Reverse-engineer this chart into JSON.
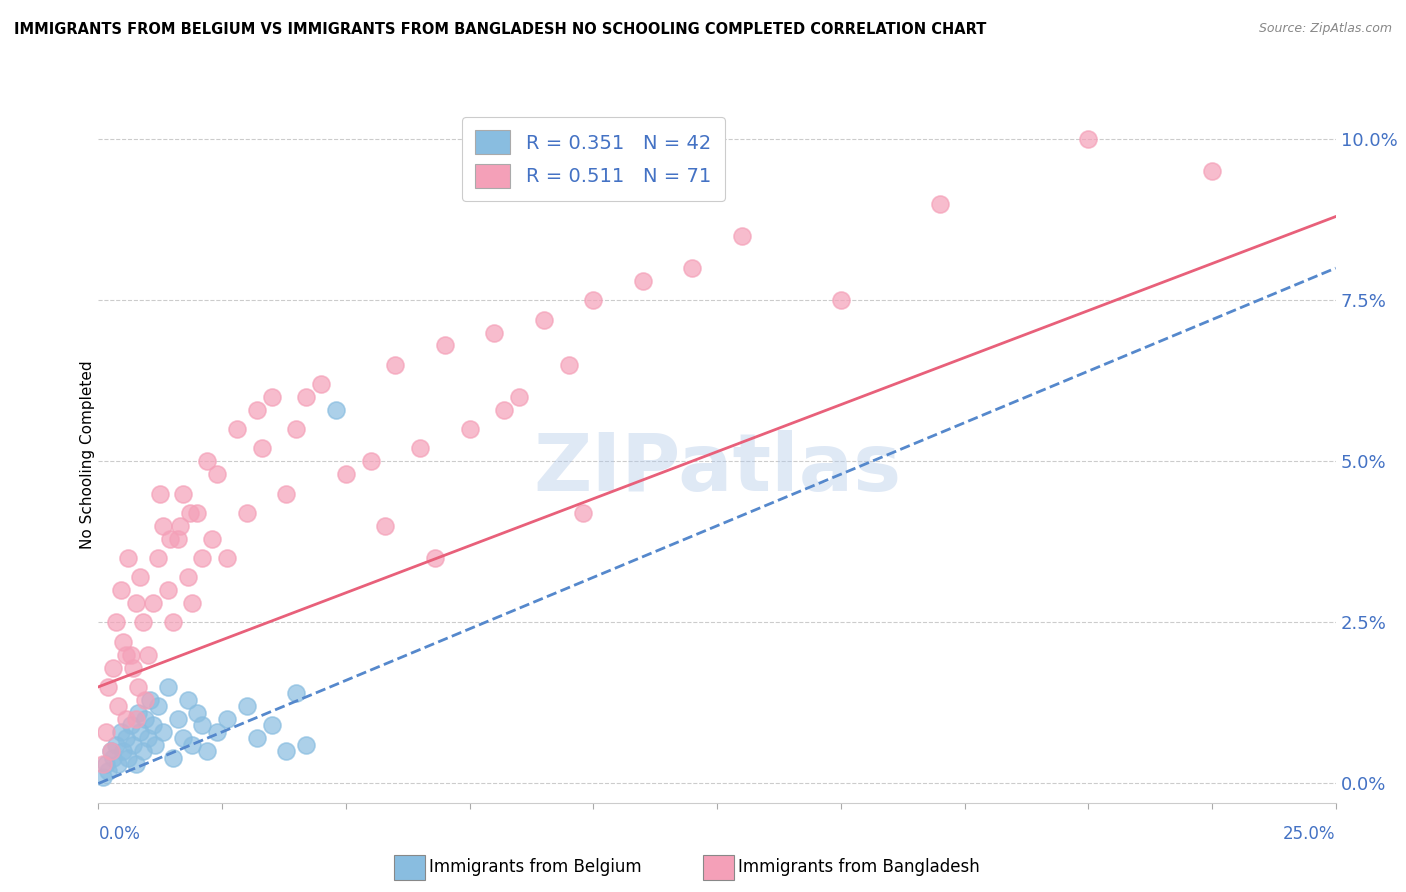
{
  "title": "IMMIGRANTS FROM BELGIUM VS IMMIGRANTS FROM BANGLADESH NO SCHOOLING COMPLETED CORRELATION CHART",
  "source": "Source: ZipAtlas.com",
  "ylabel": "No Schooling Completed",
  "yticks": [
    "0.0%",
    "2.5%",
    "5.0%",
    "7.5%",
    "10.0%"
  ],
  "ytick_vals": [
    0.0,
    2.5,
    5.0,
    7.5,
    10.0
  ],
  "xlim": [
    0.0,
    25.0
  ],
  "ylim": [
    -0.3,
    10.5
  ],
  "belgium_R": 0.351,
  "belgium_N": 42,
  "bangladesh_R": 0.511,
  "bangladesh_N": 71,
  "belgium_color": "#89bde0",
  "bangladesh_color": "#f4a0b8",
  "belgium_line_color": "#5588cc",
  "bangladesh_line_color": "#e8607a",
  "legend_label_belgium": "Immigrants from Belgium",
  "legend_label_bangladesh": "Immigrants from Bangladesh",
  "watermark": "ZIPatlas",
  "watermark_color": "#b0c8e8",
  "belgium_line_start_x": 0.0,
  "belgium_line_start_y": 0.0,
  "belgium_line_end_x": 25.0,
  "belgium_line_end_y": 8.0,
  "bangladesh_line_start_x": 0.0,
  "bangladesh_line_start_y": 1.5,
  "bangladesh_line_end_x": 25.0,
  "bangladesh_line_end_y": 8.8,
  "belgium_x": [
    0.1,
    0.15,
    0.2,
    0.25,
    0.3,
    0.35,
    0.4,
    0.45,
    0.5,
    0.55,
    0.6,
    0.65,
    0.7,
    0.75,
    0.8,
    0.85,
    0.9,
    0.95,
    1.0,
    1.05,
    1.1,
    1.15,
    1.2,
    1.3,
    1.4,
    1.5,
    1.6,
    1.7,
    1.8,
    1.9,
    2.0,
    2.1,
    2.2,
    2.4,
    2.6,
    3.0,
    3.2,
    3.5,
    3.8,
    4.0,
    4.2,
    4.8
  ],
  "belgium_y": [
    0.1,
    0.3,
    0.2,
    0.5,
    0.4,
    0.6,
    0.3,
    0.8,
    0.5,
    0.7,
    0.4,
    0.9,
    0.6,
    0.3,
    1.1,
    0.8,
    0.5,
    1.0,
    0.7,
    1.3,
    0.9,
    0.6,
    1.2,
    0.8,
    1.5,
    0.4,
    1.0,
    0.7,
    1.3,
    0.6,
    1.1,
    0.9,
    0.5,
    0.8,
    1.0,
    1.2,
    0.7,
    0.9,
    0.5,
    1.4,
    0.6,
    5.8
  ],
  "bangladesh_x": [
    0.1,
    0.15,
    0.2,
    0.25,
    0.3,
    0.35,
    0.4,
    0.45,
    0.5,
    0.55,
    0.6,
    0.65,
    0.7,
    0.75,
    0.8,
    0.85,
    0.9,
    0.95,
    1.0,
    1.1,
    1.2,
    1.3,
    1.4,
    1.5,
    1.6,
    1.7,
    1.8,
    1.9,
    2.0,
    2.1,
    2.2,
    2.4,
    2.6,
    2.8,
    3.0,
    3.2,
    3.5,
    3.8,
    4.0,
    4.5,
    5.0,
    5.5,
    6.0,
    6.5,
    7.0,
    7.5,
    8.0,
    8.5,
    9.0,
    9.5,
    10.0,
    11.0,
    12.0,
    1.25,
    1.45,
    1.65,
    1.85,
    0.55,
    0.75,
    2.3,
    3.3,
    4.2,
    5.8,
    6.8,
    8.2,
    9.8,
    13.0,
    15.0,
    17.0,
    20.0,
    22.5
  ],
  "bangladesh_y": [
    0.3,
    0.8,
    1.5,
    0.5,
    1.8,
    2.5,
    1.2,
    3.0,
    2.2,
    1.0,
    3.5,
    2.0,
    1.8,
    2.8,
    1.5,
    3.2,
    2.5,
    1.3,
    2.0,
    2.8,
    3.5,
    4.0,
    3.0,
    2.5,
    3.8,
    4.5,
    3.2,
    2.8,
    4.2,
    3.5,
    5.0,
    4.8,
    3.5,
    5.5,
    4.2,
    5.8,
    6.0,
    4.5,
    5.5,
    6.2,
    4.8,
    5.0,
    6.5,
    5.2,
    6.8,
    5.5,
    7.0,
    6.0,
    7.2,
    6.5,
    7.5,
    7.8,
    8.0,
    4.5,
    3.8,
    4.0,
    4.2,
    2.0,
    1.0,
    3.8,
    5.2,
    6.0,
    4.0,
    3.5,
    5.8,
    4.2,
    8.5,
    7.5,
    9.0,
    10.0,
    9.5
  ]
}
